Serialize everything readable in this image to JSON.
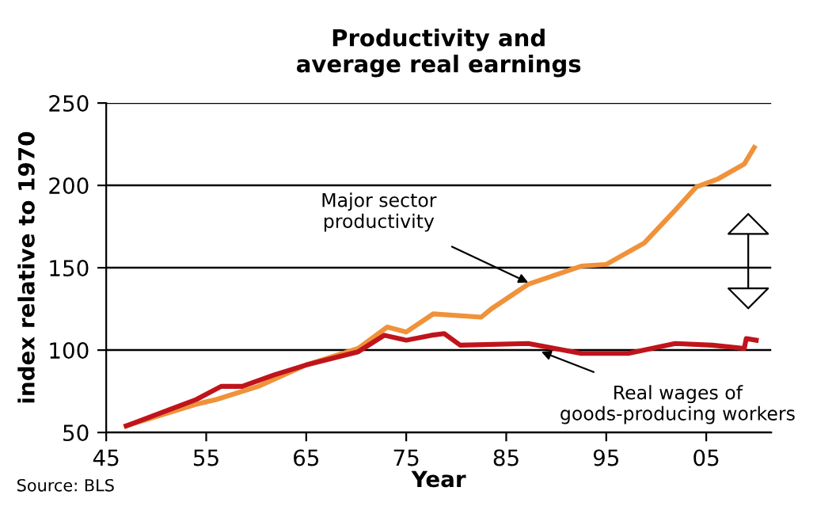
{
  "chart_data": {
    "type": "line",
    "title": "Productivity and\naverage real earnings",
    "xlabel": "Year",
    "ylabel": "index relative to 1970",
    "xlim": [
      1945,
      2011.5
    ],
    "xticks": [
      {
        "value": 1945,
        "label": "45"
      },
      {
        "value": 1955,
        "label": "55"
      },
      {
        "value": 1965,
        "label": "65"
      },
      {
        "value": 1975,
        "label": "75"
      },
      {
        "value": 1985,
        "label": "85"
      },
      {
        "value": 1995,
        "label": "95"
      },
      {
        "value": 2005,
        "label": "05"
      }
    ],
    "ylim": [
      50,
      250
    ],
    "yticks": [
      50,
      100,
      150,
      200,
      250
    ],
    "grid": "y",
    "legend": false,
    "marker": "none",
    "line_style": "solid",
    "series": [
      {
        "color": "#f0923a",
        "x": [
          1947,
          1953.9,
          1956,
          1960.2,
          1965,
          1970.2,
          1973.1,
          1975,
          1977.7,
          1982.5,
          1983.5,
          1987.2,
          1992.5,
          1995,
          1998.8,
          2001.9,
          2004,
          2006.2,
          2008.8,
          2009.8
        ],
        "values": [
          54,
          67,
          70,
          78,
          91,
          101,
          114,
          111,
          122,
          120,
          125,
          140,
          151,
          152,
          165,
          185,
          199,
          204,
          213,
          223
        ]
      },
      {
        "color": "#c0141c",
        "x": [
          1947,
          1954,
          1956.5,
          1958.6,
          1961.8,
          1965,
          1970.2,
          1972.8,
          1975,
          1977.5,
          1978.8,
          1980.4,
          1987.2,
          1992.5,
          1997.2,
          2001.9,
          2005.6,
          2008.8,
          2009,
          2010
        ],
        "values": [
          54,
          70,
          78,
          78,
          85,
          91,
          99,
          109,
          106,
          109,
          110,
          103,
          104,
          98,
          98,
          104,
          103,
          101,
          107,
          106
        ]
      }
    ],
    "annotations": [
      {
        "text": "Major sector\nproductivity",
        "x": 1987.2,
        "y": 141
      },
      {
        "text": "Real wages of\ngoods-producing workers",
        "x": 1988.5,
        "y": 99
      },
      "Source: BLS"
    ]
  }
}
